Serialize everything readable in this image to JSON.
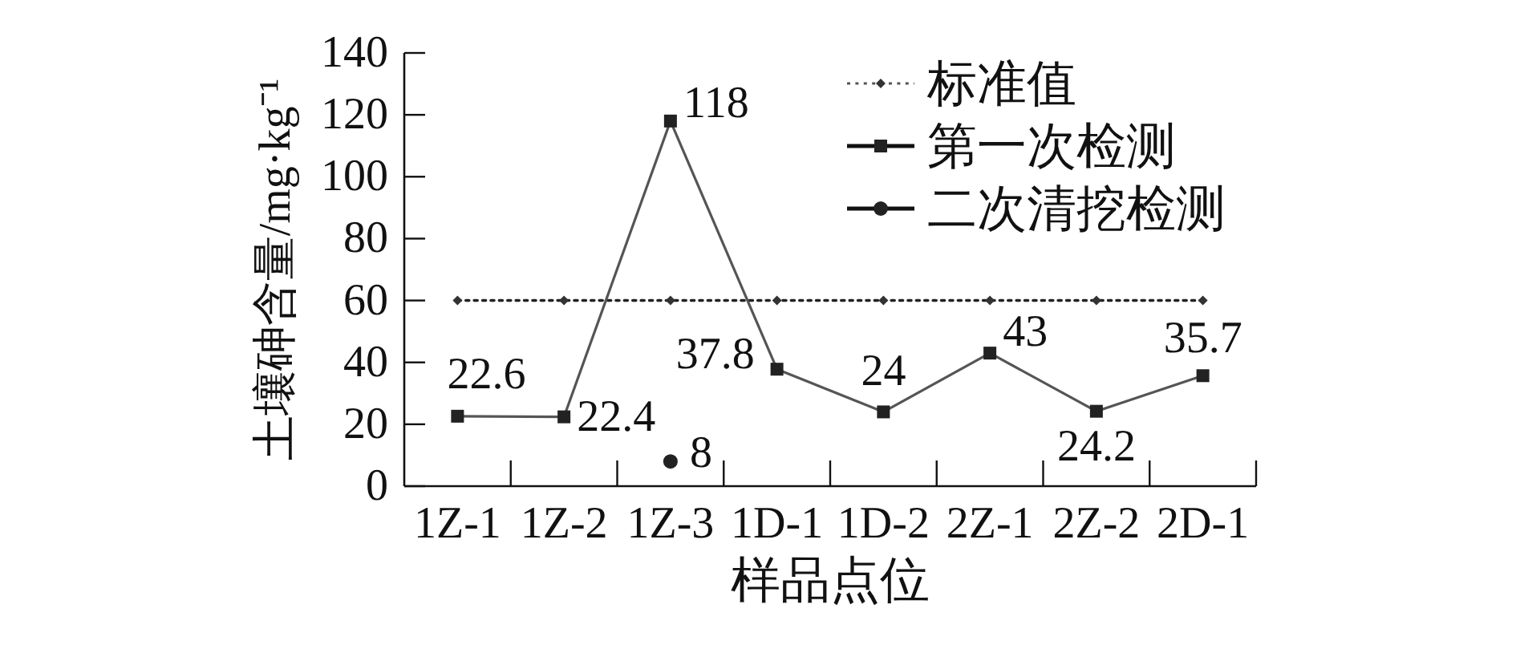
{
  "chart_data": {
    "type": "line",
    "xlabel": "样品点位",
    "ylabel": "土壤砷含量/mg·kg⁻¹",
    "categories": [
      "1Z-1",
      "1Z-2",
      "1Z-3",
      "1D-1",
      "1D-2",
      "2Z-1",
      "2Z-2",
      "2D-1"
    ],
    "ylim": [
      0,
      140
    ],
    "yticks": [
      0,
      20,
      40,
      60,
      80,
      100,
      120,
      140
    ],
    "legend": "top right",
    "series": [
      {
        "name": "标准值",
        "color": "#333333",
        "marker": "diamond",
        "line_style": "dotted",
        "values": [
          60,
          60,
          60,
          60,
          60,
          60,
          60,
          60
        ]
      },
      {
        "name": "第一次检测",
        "color": "#222222",
        "marker": "square",
        "line_style": "solid",
        "values": [
          22.6,
          22.4,
          118,
          37.8,
          24,
          43,
          24.2,
          35.7
        ],
        "value_labels": [
          "22.6",
          "22.4",
          "118",
          "37.8",
          "24",
          "43",
          "24.2",
          "35.7"
        ]
      },
      {
        "name": "二次清挖检测",
        "color": "#222222",
        "marker": "circle",
        "line_style": "solid",
        "values": [
          null,
          null,
          8,
          null,
          null,
          null,
          null,
          null
        ],
        "value_labels": [
          null,
          null,
          "8",
          null,
          null,
          null,
          null,
          null
        ]
      }
    ]
  }
}
